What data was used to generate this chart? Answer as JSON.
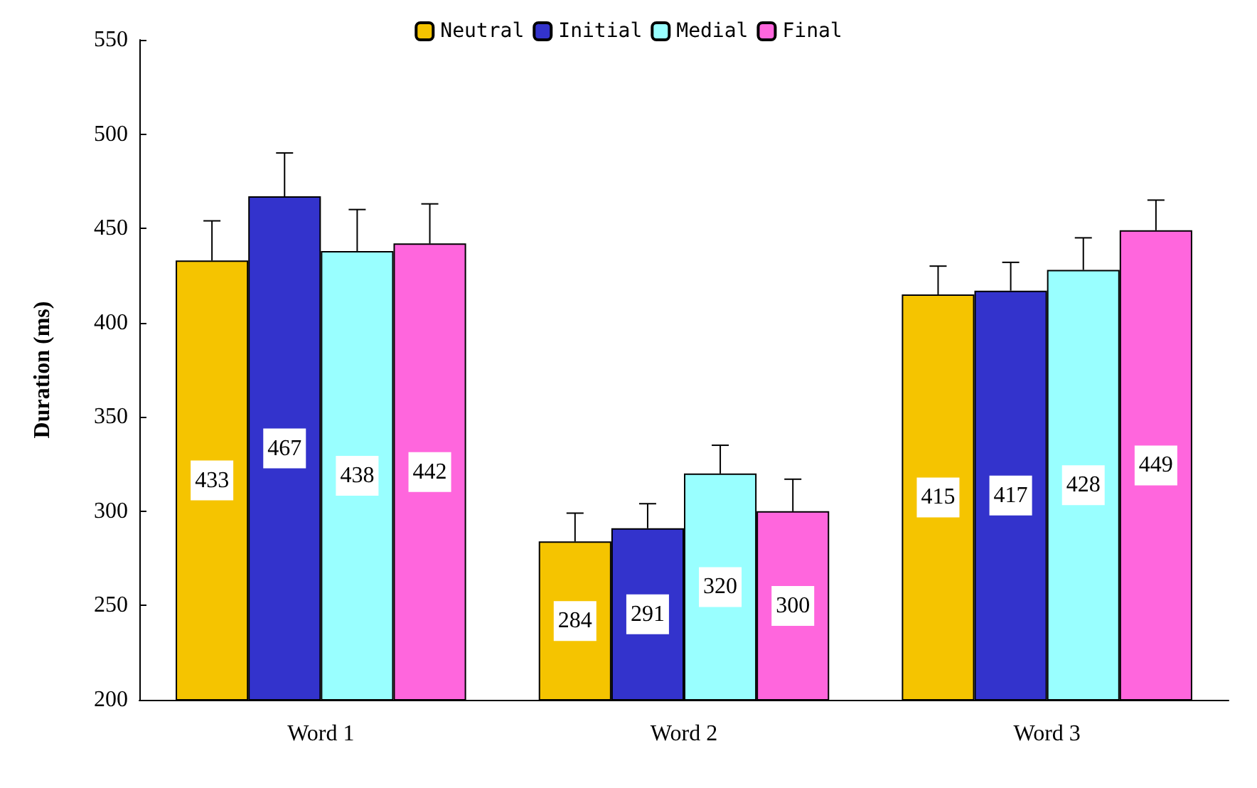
{
  "chart_data": {
    "type": "bar",
    "ylabel": "Duration (ms)",
    "categories": [
      "Word 1",
      "Word 2",
      "Word 3"
    ],
    "series": [
      {
        "name": "Neutral",
        "color": "#f5c400",
        "values": [
          433,
          284,
          415
        ],
        "errors": [
          [
            433,
            454
          ],
          [
            284,
            299
          ],
          [
            415,
            430
          ]
        ]
      },
      {
        "name": "Initial",
        "color": "#3333cc",
        "values": [
          467,
          291,
          417
        ],
        "errors": [
          [
            467,
            490
          ],
          [
            291,
            304
          ],
          [
            417,
            432
          ]
        ]
      },
      {
        "name": "Medial",
        "color": "#99ffff",
        "values": [
          438,
          320,
          428
        ],
        "errors": [
          [
            438,
            460
          ],
          [
            320,
            335
          ],
          [
            428,
            445
          ]
        ]
      },
      {
        "name": "Final",
        "color": "#ff66dd",
        "values": [
          442,
          300,
          449
        ],
        "errors": [
          [
            442,
            463
          ],
          [
            300,
            317
          ],
          [
            449,
            465
          ]
        ]
      }
    ],
    "ylim": [
      200,
      550
    ],
    "yticks": [
      200,
      250,
      300,
      350,
      400,
      450,
      500,
      550
    ],
    "data_labels": true,
    "grid": false,
    "legend": "top"
  }
}
